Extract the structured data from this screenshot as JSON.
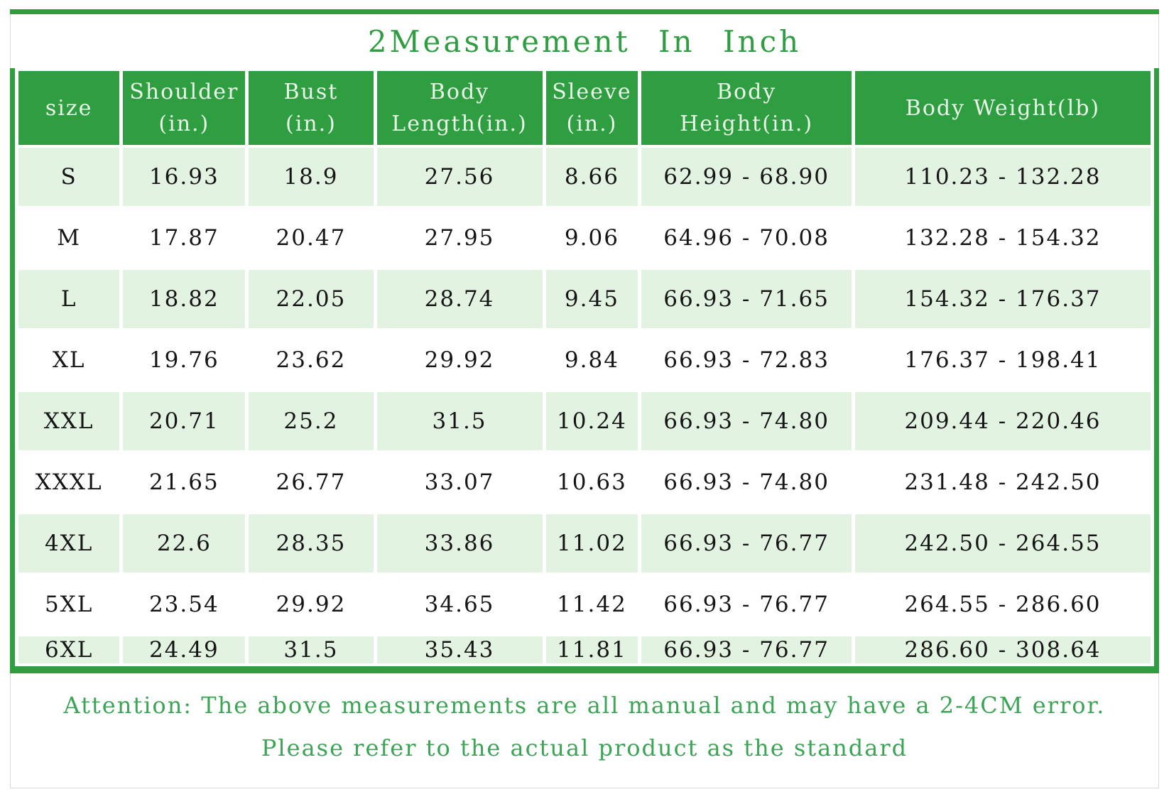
{
  "title": "2Measurement In Inch",
  "colors": {
    "accent_green": "#2e9e41",
    "row_light_green": "#e3f3e1",
    "title_text_green": "#2f9d42",
    "attention_text_green": "#3ba455",
    "cell_text": "#151515"
  },
  "table": {
    "headers": [
      "size",
      "Shoulder\n(in.)",
      "Bust\n(in.)",
      "Body\nLength(in.)",
      "Sleeve\n(in.)",
      "Body\nHeight(in.)",
      "Body Weight(lb)"
    ],
    "rows": [
      [
        "S",
        "16.93",
        "18.9",
        "27.56",
        "8.66",
        "62.99 - 68.90",
        "110.23 - 132.28"
      ],
      [
        "M",
        "17.87",
        "20.47",
        "27.95",
        "9.06",
        "64.96 - 70.08",
        "132.28 - 154.32"
      ],
      [
        "L",
        "18.82",
        "22.05",
        "28.74",
        "9.45",
        "66.93 - 71.65",
        "154.32 - 176.37"
      ],
      [
        "XL",
        "19.76",
        "23.62",
        "29.92",
        "9.84",
        "66.93 - 72.83",
        "176.37 - 198.41"
      ],
      [
        "XXL",
        "20.71",
        "25.2",
        "31.5",
        "10.24",
        "66.93 - 74.80",
        "209.44 - 220.46"
      ],
      [
        "XXXL",
        "21.65",
        "26.77",
        "33.07",
        "10.63",
        "66.93 - 74.80",
        "231.48 - 242.50"
      ],
      [
        "4XL",
        "22.6",
        "28.35",
        "33.86",
        "11.02",
        "66.93 - 76.77",
        "242.50 - 264.55"
      ],
      [
        "5XL",
        "23.54",
        "29.92",
        "34.65",
        "11.42",
        "66.93 - 76.77",
        "264.55 - 286.60"
      ],
      [
        "6XL",
        "24.49",
        "31.5",
        "35.43",
        "11.81",
        "66.93 - 76.77",
        "286.60 - 308.64"
      ]
    ]
  },
  "attention": {
    "line1": "Attention: The above measurements are all manual and may have a 2-4CM error.",
    "line2": "Please refer to the actual product as the standard"
  },
  "chart_data": {
    "type": "table",
    "title": "2Measurement In Inch",
    "columns": [
      "size",
      "Shoulder (in.)",
      "Bust (in.)",
      "Body Length(in.)",
      "Sleeve (in.)",
      "Body Height(in.)",
      "Body Weight(lb)"
    ],
    "rows": [
      [
        "S",
        16.93,
        18.9,
        27.56,
        8.66,
        "62.99 - 68.90",
        "110.23 - 132.28"
      ],
      [
        "M",
        17.87,
        20.47,
        27.95,
        9.06,
        "64.96 - 70.08",
        "132.28 - 154.32"
      ],
      [
        "L",
        18.82,
        22.05,
        28.74,
        9.45,
        "66.93 - 71.65",
        "154.32 - 176.37"
      ],
      [
        "XL",
        19.76,
        23.62,
        29.92,
        9.84,
        "66.93 - 72.83",
        "176.37 - 198.41"
      ],
      [
        "XXL",
        20.71,
        25.2,
        31.5,
        10.24,
        "66.93 - 74.80",
        "209.44 - 220.46"
      ],
      [
        "XXXL",
        21.65,
        26.77,
        33.07,
        10.63,
        "66.93 - 74.80",
        "231.48 - 242.50"
      ],
      [
        "4XL",
        22.6,
        28.35,
        33.86,
        11.02,
        "66.93 - 76.77",
        "242.50 - 264.55"
      ],
      [
        "5XL",
        23.54,
        29.92,
        34.65,
        11.42,
        "66.93 - 76.77",
        "264.55 - 286.60"
      ],
      [
        "6XL",
        24.49,
        31.5,
        35.43,
        11.81,
        "66.93 - 76.77",
        "286.60 - 308.64"
      ]
    ],
    "notes": [
      "Attention: The above measurements are all manual and may have a 2-4CM error.",
      "Please refer to the actual product as the standard"
    ]
  }
}
